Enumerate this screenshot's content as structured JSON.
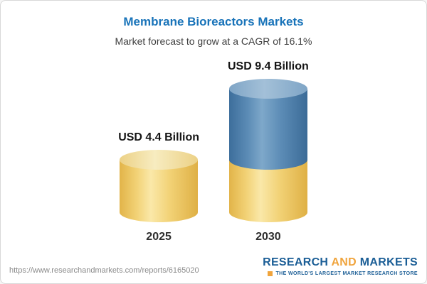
{
  "header": {
    "title": "Membrane Bioreactors Markets",
    "subtitle": "Market forecast to grow at a CAGR of 16.1%"
  },
  "chart_data": {
    "type": "bar",
    "bar_style": "3d-cylinder",
    "title": "Membrane Bioreactors Markets",
    "subtitle": "Market forecast to grow at a CAGR of 16.1%",
    "cagr": "16.1%",
    "unit": "USD Billion",
    "categories": [
      "2025",
      "2030"
    ],
    "values": [
      4.4,
      9.4
    ],
    "value_labels": [
      "USD 4.4 Billion",
      "USD 9.4 Billion"
    ],
    "colors": {
      "bar_2025": "#F2CF6B",
      "bar_2030_growth_segment": "#4D80AC",
      "bar_2030_base_segment": "#F2CF6B",
      "title_text": "#1873B9"
    },
    "notes": "2030 bar is stacked: yellow base equal to 2025 value with blue growth segment on top; no axes or gridlines shown"
  },
  "footer": {
    "url": "https://www.researchandmarkets.com/reports/6165020",
    "logo": {
      "research": "RESEARCH",
      "and": "AND",
      "markets": "MARKETS",
      "tagline": "THE WORLD'S LARGEST MARKET RESEARCH STORE"
    }
  }
}
